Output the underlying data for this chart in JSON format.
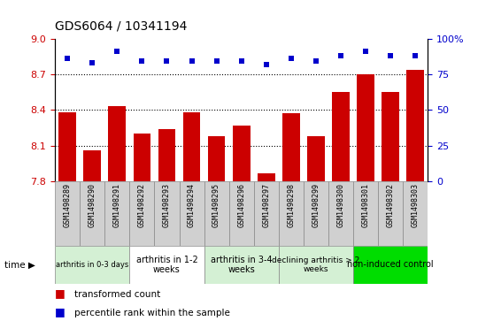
{
  "title": "GDS6064 / 10341194",
  "samples": [
    "GSM1498289",
    "GSM1498290",
    "GSM1498291",
    "GSM1498292",
    "GSM1498293",
    "GSM1498294",
    "GSM1498295",
    "GSM1498296",
    "GSM1498297",
    "GSM1498298",
    "GSM1498299",
    "GSM1498300",
    "GSM1498301",
    "GSM1498302",
    "GSM1498303"
  ],
  "bar_values": [
    8.38,
    8.06,
    8.43,
    8.2,
    8.24,
    8.38,
    8.18,
    8.27,
    7.87,
    8.37,
    8.18,
    8.55,
    8.7,
    8.55,
    8.74
  ],
  "dot_values": [
    86,
    83,
    91,
    84,
    84,
    84,
    84,
    84,
    82,
    86,
    84,
    88,
    91,
    88,
    88
  ],
  "ylim_left": [
    7.8,
    9.0
  ],
  "ylim_right": [
    0,
    100
  ],
  "yticks_left": [
    7.8,
    8.1,
    8.4,
    8.7,
    9.0
  ],
  "yticks_right": [
    0,
    25,
    50,
    75,
    100
  ],
  "bar_color": "#cc0000",
  "dot_color": "#0000cc",
  "groups": [
    {
      "label": "arthritis in 0-3 days",
      "start": 0,
      "end": 3,
      "color": "#d4f0d4",
      "fontsize": 6
    },
    {
      "label": "arthritis in 1-2\nweeks",
      "start": 3,
      "end": 6,
      "color": "#ffffff",
      "fontsize": 7
    },
    {
      "label": "arthritis in 3-4\nweeks",
      "start": 6,
      "end": 9,
      "color": "#d4f0d4",
      "fontsize": 7
    },
    {
      "label": "declining arthritis > 2\nweeks",
      "start": 9,
      "end": 12,
      "color": "#d4f0d4",
      "fontsize": 6.5
    },
    {
      "label": "non-induced control",
      "start": 12,
      "end": 15,
      "color": "#00dd00",
      "fontsize": 7
    }
  ],
  "legend_bar_label": "transformed count",
  "legend_dot_label": "percentile rank within the sample",
  "tick_label_color": "#cc0000",
  "right_tick_color": "#0000cc",
  "grid_lines": [
    8.1,
    8.4,
    8.7
  ],
  "sample_bg_color": "#d0d0d0",
  "time_arrow": "time ▶"
}
